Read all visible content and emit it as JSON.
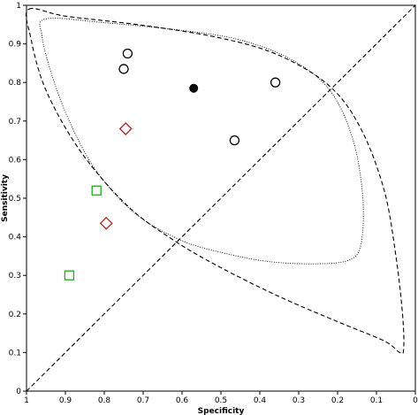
{
  "chart_data": {
    "type": "scatter",
    "title": "",
    "xlabel": "Specificity",
    "ylabel": "Sensitivity",
    "x_reversed": true,
    "xlim": [
      0,
      1
    ],
    "ylim": [
      0,
      1
    ],
    "x_ticks": [
      "1",
      "0.9",
      "0.8",
      "0.7",
      "0.6",
      "0.5",
      "0.4",
      "0.3",
      "0.2",
      "0.1",
      "0"
    ],
    "y_ticks": [
      "0",
      "0.1",
      "0.2",
      "0.3",
      "0.4",
      "0.5",
      "0.6",
      "0.7",
      "0.8",
      "0.9",
      "1"
    ],
    "grid": false,
    "series": [
      {
        "marker": "circle-open",
        "color": "#000000",
        "points": [
          {
            "x": 0.74,
            "y": 0.875
          },
          {
            "x": 0.75,
            "y": 0.835
          },
          {
            "x": 0.36,
            "y": 0.8
          },
          {
            "x": 0.465,
            "y": 0.65
          }
        ]
      },
      {
        "marker": "circle-filled",
        "color": "#000000",
        "points": [
          {
            "x": 0.57,
            "y": 0.785
          }
        ]
      },
      {
        "marker": "diamond-open",
        "color": "#b22222",
        "points": [
          {
            "x": 0.745,
            "y": 0.68
          },
          {
            "x": 0.795,
            "y": 0.435
          }
        ]
      },
      {
        "marker": "square-open",
        "color": "#22aa22",
        "points": [
          {
            "x": 0.82,
            "y": 0.52
          },
          {
            "x": 0.89,
            "y": 0.3
          }
        ]
      }
    ],
    "reference_line": {
      "style": "dashed",
      "from": {
        "x": 1,
        "y": 0
      },
      "to": {
        "x": 0,
        "y": 1
      }
    },
    "curves": [
      {
        "style": "dashed",
        "closed": true,
        "points": [
          [
            0.994,
            0.99
          ],
          [
            0.9,
            0.972
          ],
          [
            0.7,
            0.948
          ],
          [
            0.5,
            0.915
          ],
          [
            0.35,
            0.87
          ],
          [
            0.22,
            0.79
          ],
          [
            0.14,
            0.68
          ],
          [
            0.08,
            0.52
          ],
          [
            0.05,
            0.35
          ],
          [
            0.033,
            0.2
          ],
          [
            0.03,
            0.11
          ],
          [
            0.04,
            0.1
          ],
          [
            0.08,
            0.13
          ],
          [
            0.2,
            0.18
          ],
          [
            0.35,
            0.245
          ],
          [
            0.5,
            0.32
          ],
          [
            0.62,
            0.39
          ],
          [
            0.74,
            0.48
          ],
          [
            0.86,
            0.62
          ],
          [
            0.95,
            0.78
          ],
          [
            0.99,
            0.92
          ]
        ]
      },
      {
        "style": "dotted",
        "closed": true,
        "points": [
          [
            0.95,
            0.965
          ],
          [
            0.8,
            0.955
          ],
          [
            0.6,
            0.935
          ],
          [
            0.45,
            0.91
          ],
          [
            0.32,
            0.86
          ],
          [
            0.22,
            0.78
          ],
          [
            0.16,
            0.65
          ],
          [
            0.135,
            0.5
          ],
          [
            0.14,
            0.38
          ],
          [
            0.17,
            0.34
          ],
          [
            0.25,
            0.33
          ],
          [
            0.37,
            0.335
          ],
          [
            0.48,
            0.355
          ],
          [
            0.6,
            0.39
          ],
          [
            0.72,
            0.46
          ],
          [
            0.82,
            0.57
          ],
          [
            0.89,
            0.7
          ],
          [
            0.935,
            0.82
          ],
          [
            0.96,
            0.92
          ]
        ]
      }
    ],
    "colors": {
      "axis": "#000000",
      "frame": "#000000"
    }
  }
}
